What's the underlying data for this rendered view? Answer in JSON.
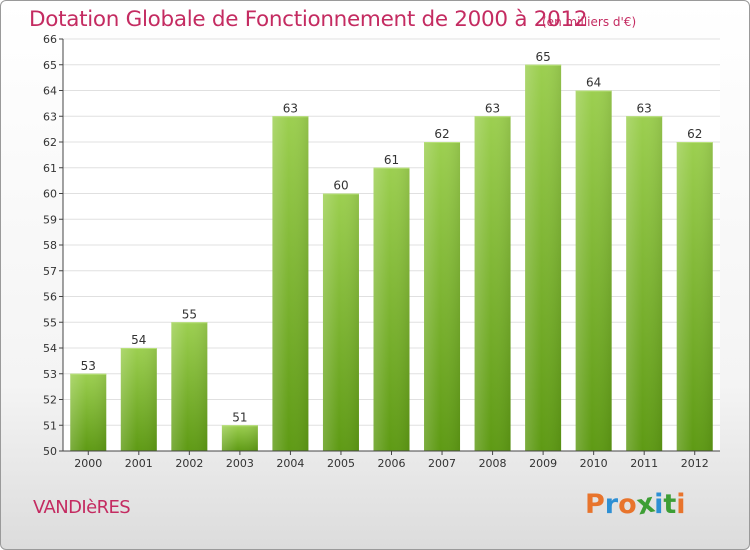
{
  "header": {
    "title": "Dotation Globale de Fonctionnement de 2000 à 2012",
    "unit": "(en milliers d'€)"
  },
  "footer": {
    "commune": "VANDIèRES",
    "brand": [
      "P",
      "r",
      "o",
      "x",
      "i",
      "t",
      "i"
    ],
    "brand_colors": [
      "#e8742c",
      "#2d8fd4",
      "#e8742c",
      "#3d9e35",
      "#2d8fd4",
      "#3d9e35",
      "#e8742c"
    ]
  },
  "colors": {
    "title": "#c42b61",
    "bar_top": "#9ccf50",
    "bar_bottom": "#5e9a14",
    "grid": "#e0e0e0",
    "axis": "#444444",
    "text": "#333333"
  },
  "chart_data": {
    "type": "bar",
    "title": "Dotation Globale de Fonctionnement de 2000 à 2012",
    "subtitle": "(en milliers d'€)",
    "xlabel": "",
    "ylabel": "",
    "categories": [
      "2000",
      "2001",
      "2002",
      "2003",
      "2004",
      "2005",
      "2006",
      "2007",
      "2008",
      "2009",
      "2010",
      "2011",
      "2012"
    ],
    "values": [
      53,
      54,
      55,
      51,
      63,
      60,
      61,
      62,
      63,
      65,
      64,
      63,
      62
    ],
    "ylim": [
      50,
      66
    ],
    "yticks": [
      50,
      51,
      52,
      53,
      54,
      55,
      56,
      57,
      58,
      59,
      60,
      61,
      62,
      63,
      64,
      65,
      66
    ],
    "grid": true,
    "data_labels": true
  }
}
